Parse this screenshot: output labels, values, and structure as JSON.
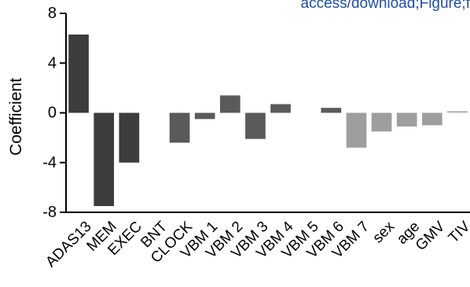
{
  "header": {
    "link_text": "access/download;Figure;f"
  },
  "colors": {
    "dark_bar": "#3d3d3d",
    "mid_bar": "#5a5a5a",
    "light_bar": "#9e9e9e",
    "tiv_bar": "#b8b8b8",
    "axis": "#000000",
    "link": "#1f4fa7"
  },
  "chart_data": {
    "type": "bar",
    "ylabel": "Coefficient",
    "ylim": [
      -8,
      8
    ],
    "yticks": [
      8,
      4,
      0,
      -4,
      -8
    ],
    "categories": [
      "ADAS13",
      "MEM",
      "EXEC",
      "BNT",
      "CLOCK",
      "VBM 1",
      "VBM 2",
      "VBM 3",
      "VBM 4",
      "VBM 5",
      "VBM 6",
      "VBM 7",
      "sex",
      "age",
      "GMV",
      "TIV"
    ],
    "values": [
      6.3,
      -7.5,
      -4.0,
      0.0,
      -2.4,
      -0.5,
      1.4,
      -2.1,
      0.7,
      0.0,
      0.4,
      -2.8,
      -1.5,
      -1.1,
      -1.0,
      0.15
    ],
    "bar_color_groups": [
      "dark",
      "dark",
      "dark",
      "mid",
      "mid",
      "mid",
      "mid",
      "mid",
      "mid",
      "mid",
      "mid",
      "light",
      "light",
      "light",
      "light",
      "light"
    ],
    "grid": false
  }
}
